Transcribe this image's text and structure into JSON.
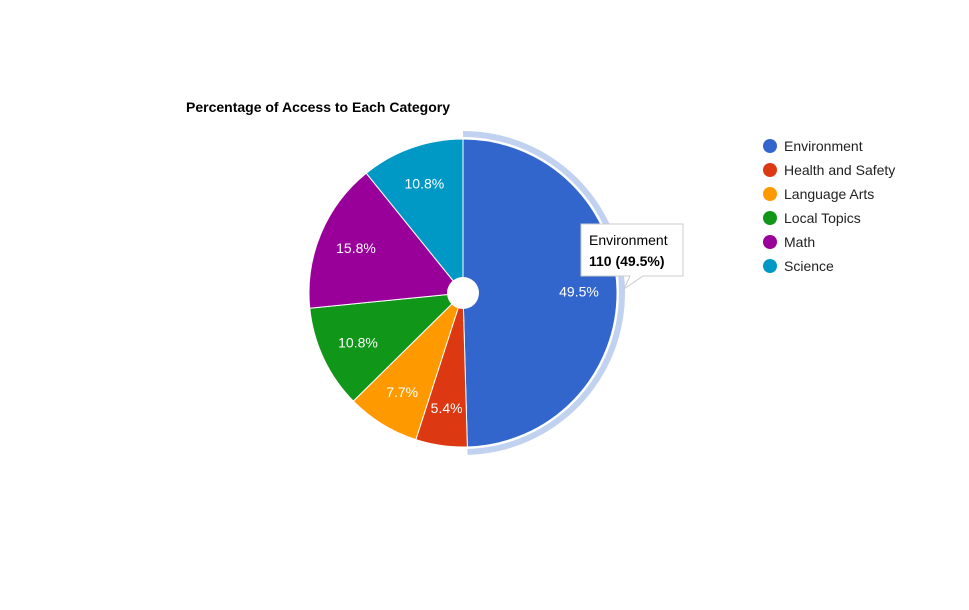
{
  "chart_data": {
    "type": "pie",
    "title": "Percentage of Access to Each Category",
    "categories": [
      "Environment",
      "Health and Safety",
      "Language Arts",
      "Local Topics",
      "Math",
      "Science"
    ],
    "values": [
      110,
      12,
      17,
      24,
      35,
      24
    ],
    "percent_labels": [
      "49.5%",
      "5.4%",
      "7.7%",
      "10.8%",
      "15.8%",
      "10.8%"
    ],
    "colors": [
      "#3366cc",
      "#dc3912",
      "#ff9900",
      "#109618",
      "#990099",
      "#0099c6"
    ],
    "legend_position": "right",
    "donut_hole": true,
    "highlighted_slice": "Environment",
    "tooltip": {
      "name": "Environment",
      "value_text": "110 (49.5%)"
    }
  }
}
